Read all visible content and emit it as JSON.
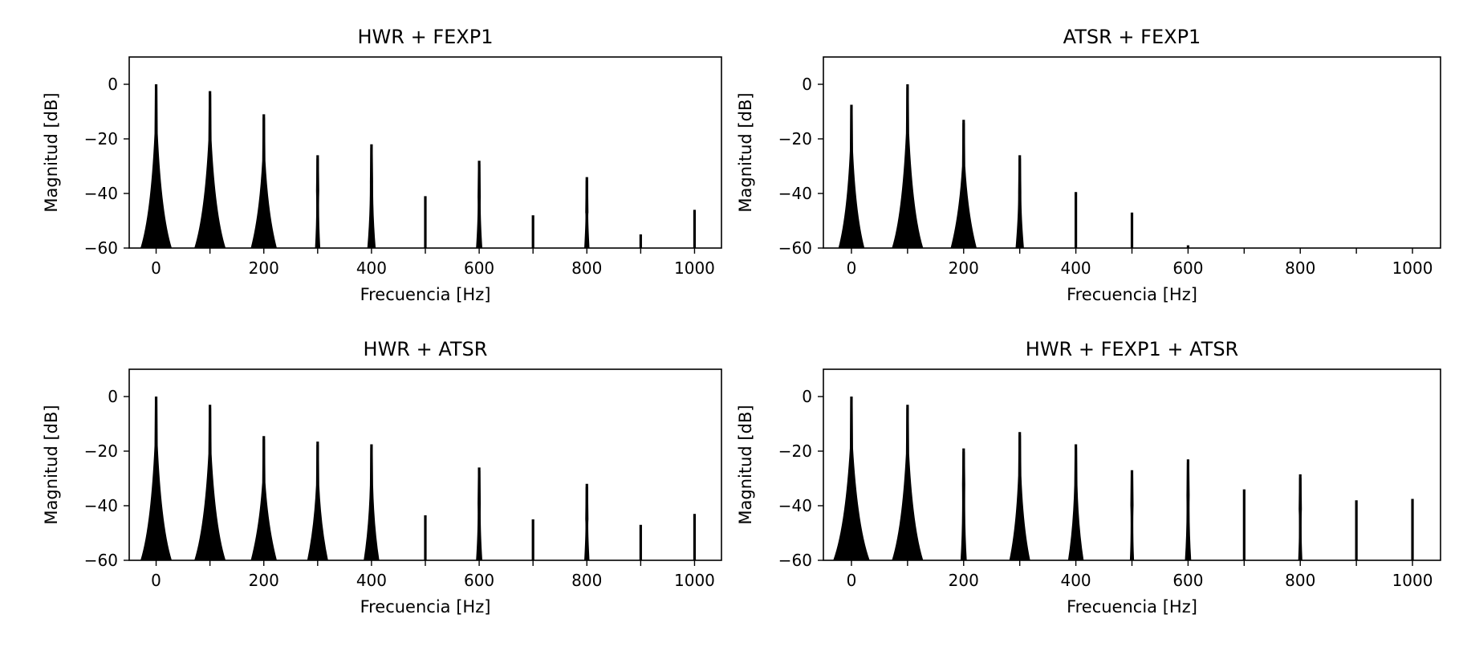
{
  "figure": {
    "background": "#ffffff",
    "line_color": "#000000"
  },
  "chart_data": [
    {
      "type": "line",
      "title": "HWR + FEXP1",
      "xlabel": "Frecuencia [Hz]",
      "ylabel": "Magnitud [dB]",
      "xlim": [
        -50,
        1050
      ],
      "ylim": [
        -60,
        10
      ],
      "xticks": [
        0,
        200,
        400,
        600,
        800,
        1000
      ],
      "yticks": [
        0,
        -20,
        -40,
        -60
      ],
      "grid": false,
      "peaks": [
        {
          "x": 0,
          "y": 0,
          "skirt": 3
        },
        {
          "x": 100,
          "y": -2.5,
          "skirt": 3
        },
        {
          "x": 200,
          "y": -11,
          "skirt": 2.5
        },
        {
          "x": 300,
          "y": -26,
          "skirt": 0.5
        },
        {
          "x": 400,
          "y": -22,
          "skirt": 0.8
        },
        {
          "x": 500,
          "y": -41,
          "skirt": 0
        },
        {
          "x": 600,
          "y": -28,
          "skirt": 0.6
        },
        {
          "x": 700,
          "y": -48,
          "skirt": 0
        },
        {
          "x": 800,
          "y": -34,
          "skirt": 0.5
        },
        {
          "x": 900,
          "y": -55,
          "skirt": 0
        },
        {
          "x": 1000,
          "y": -46,
          "skirt": 0
        }
      ]
    },
    {
      "type": "line",
      "title": "ATSR + FEXP1",
      "xlabel": "Frecuencia [Hz]",
      "ylabel": "Magnitud [dB]",
      "xlim": [
        -50,
        1050
      ],
      "ylim": [
        -60,
        10
      ],
      "xticks": [
        0,
        200,
        400,
        600,
        800,
        1000
      ],
      "yticks": [
        0,
        -20,
        -40,
        -60
      ],
      "grid": false,
      "peaks": [
        {
          "x": 0,
          "y": -7.5,
          "skirt": 2.5
        },
        {
          "x": 100,
          "y": 0,
          "skirt": 3
        },
        {
          "x": 200,
          "y": -13,
          "skirt": 2.5
        },
        {
          "x": 300,
          "y": -26,
          "skirt": 0.8
        },
        {
          "x": 400,
          "y": -39.5,
          "skirt": 0
        },
        {
          "x": 500,
          "y": -47,
          "skirt": 0
        },
        {
          "x": 600,
          "y": -59,
          "skirt": 0
        }
      ]
    },
    {
      "type": "line",
      "title": "HWR + ATSR",
      "xlabel": "Frecuencia [Hz]",
      "ylabel": "Magnitud [dB]",
      "xlim": [
        -50,
        1050
      ],
      "ylim": [
        -60,
        10
      ],
      "xticks": [
        0,
        200,
        400,
        600,
        800,
        1000
      ],
      "yticks": [
        0,
        -20,
        -40,
        -60
      ],
      "grid": false,
      "peaks": [
        {
          "x": 0,
          "y": 0,
          "skirt": 3
        },
        {
          "x": 100,
          "y": -3,
          "skirt": 3
        },
        {
          "x": 200,
          "y": -14.5,
          "skirt": 2.5
        },
        {
          "x": 300,
          "y": -16.5,
          "skirt": 2
        },
        {
          "x": 400,
          "y": -17.5,
          "skirt": 1.5
        },
        {
          "x": 500,
          "y": -43.5,
          "skirt": 0
        },
        {
          "x": 600,
          "y": -26,
          "skirt": 0.6
        },
        {
          "x": 700,
          "y": -45,
          "skirt": 0
        },
        {
          "x": 800,
          "y": -32,
          "skirt": 0.5
        },
        {
          "x": 900,
          "y": -47,
          "skirt": 0
        },
        {
          "x": 1000,
          "y": -43,
          "skirt": 0
        }
      ]
    },
    {
      "type": "line",
      "title": "HWR + FEXP1 + ATSR",
      "xlabel": "Frecuencia [Hz]",
      "ylabel": "Magnitud [dB]",
      "xlim": [
        -50,
        1050
      ],
      "ylim": [
        -60,
        10
      ],
      "xticks": [
        0,
        200,
        400,
        600,
        800,
        1000
      ],
      "yticks": [
        0,
        -20,
        -40,
        -60
      ],
      "grid": false,
      "peaks": [
        {
          "x": 0,
          "y": 0,
          "skirt": 3.5
        },
        {
          "x": 100,
          "y": -3,
          "skirt": 3
        },
        {
          "x": 200,
          "y": -19,
          "skirt": 0.6
        },
        {
          "x": 300,
          "y": -13,
          "skirt": 2
        },
        {
          "x": 400,
          "y": -17.5,
          "skirt": 1.5
        },
        {
          "x": 500,
          "y": -27,
          "skirt": 0.4
        },
        {
          "x": 600,
          "y": -23,
          "skirt": 0.6
        },
        {
          "x": 700,
          "y": -34,
          "skirt": 0
        },
        {
          "x": 800,
          "y": -28.5,
          "skirt": 0.4
        },
        {
          "x": 900,
          "y": -38,
          "skirt": 0
        },
        {
          "x": 1000,
          "y": -37.5,
          "skirt": 0
        }
      ]
    }
  ]
}
